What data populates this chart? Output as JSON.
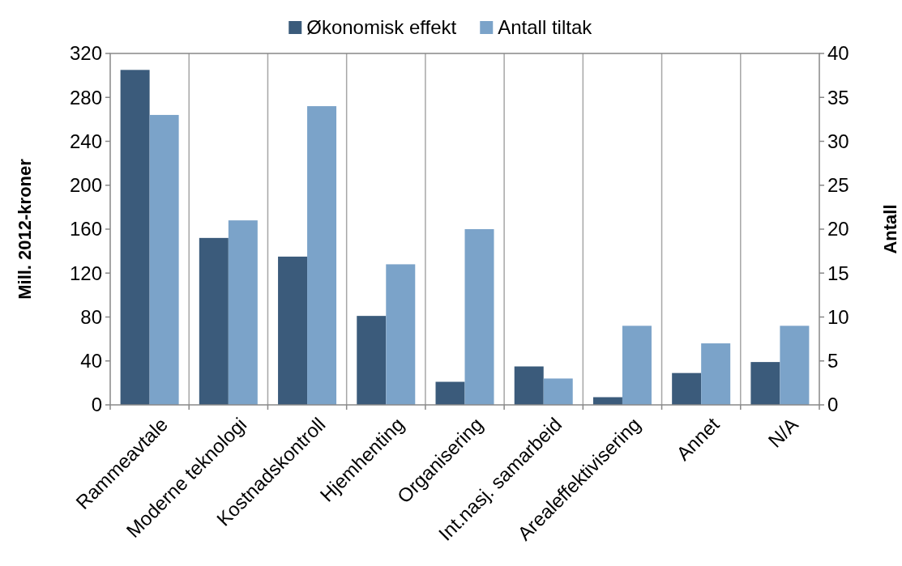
{
  "chart_data": {
    "type": "bar",
    "categories": [
      "Rammeavtale",
      "Moderne teknologi",
      "Kostnadskontroll",
      "Hjemhenting",
      "Organisering",
      "Int.nasj. samarbeid",
      "Arealeffektivisering",
      "Annet",
      "N/A"
    ],
    "series": [
      {
        "name": "Økonomisk effekt",
        "color": "#3b5b7b",
        "values": [
          305,
          152,
          135,
          81,
          21,
          35,
          7,
          29,
          39
        ]
      },
      {
        "name": "Antall tiltak",
        "color": "#7ba3c9",
        "axis": "y2",
        "values": [
          33,
          21,
          34,
          16,
          20,
          3,
          9,
          7,
          9
        ]
      }
    ],
    "ylabel": "Mill. 2012-kroner",
    "y2label": "Antall",
    "ylim": [
      0,
      320
    ],
    "yticks": [
      0,
      40,
      80,
      120,
      160,
      200,
      240,
      280,
      320
    ],
    "y2lim": [
      0,
      40
    ],
    "y2ticks": [
      0,
      5,
      10,
      15,
      20,
      25,
      30,
      35,
      40
    ],
    "grid": "x",
    "legend": "top"
  }
}
